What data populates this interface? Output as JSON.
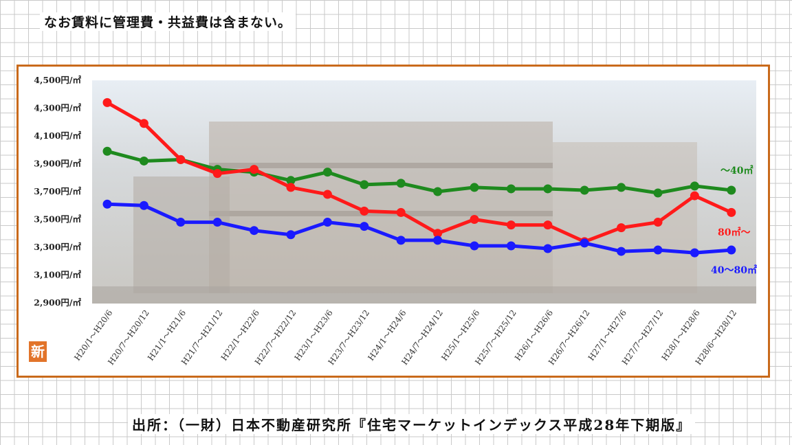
{
  "note": "なお賃料に管理費・共益費は含まない。",
  "source": "出所：（一財）日本不動産研究所『住宅マーケットインデックス平成28年下期版』",
  "badge": "新",
  "chart_data": {
    "type": "line",
    "title": "",
    "xlabel": "",
    "ylabel": "",
    "ylim": [
      2900,
      4500
    ],
    "yticks": [
      2900,
      3100,
      3300,
      3500,
      3700,
      3900,
      4100,
      4300,
      4500
    ],
    "ytick_labels": [
      "2,900円/㎡",
      "3,100円/㎡",
      "3,300円/㎡",
      "3,500円/㎡",
      "3,700円/㎡",
      "3,900円/㎡",
      "4,100円/㎡",
      "4,300円/㎡",
      "4,500円/㎡"
    ],
    "grid": false,
    "legend": "inline-right",
    "categories": [
      "H20/1～H20/6",
      "H20/7～H20/12",
      "H21/1～H21/6",
      "H21/7～H21/12",
      "H22/1～H22/6",
      "H22/7～H22/12",
      "H23/1～H23/6",
      "H23/7～H23/12",
      "H24/1～H24/6",
      "H24/7～H24/12",
      "H25/1～H25/6",
      "H25/7～H25/12",
      "H26/1～H26/6",
      "H26/7～H26/12",
      "H27/1～H27/6",
      "H27/7～H27/12",
      "H28/1～H28/6",
      "H28/6～H28/12"
    ],
    "series": [
      {
        "name": "～40㎡",
        "color": "#1e8a1e",
        "values": [
          3990,
          3920,
          3930,
          3860,
          3840,
          3780,
          3840,
          3750,
          3760,
          3700,
          3730,
          3720,
          3720,
          3710,
          3730,
          3690,
          3740,
          3710
        ]
      },
      {
        "name": "80㎡～",
        "color": "#ff1a1a",
        "values": [
          4340,
          4190,
          3930,
          3830,
          3860,
          3730,
          3680,
          3560,
          3550,
          3400,
          3500,
          3460,
          3460,
          3340,
          3440,
          3480,
          3670,
          3550
        ]
      },
      {
        "name": "40～80㎡",
        "color": "#1a1aff",
        "values": [
          3610,
          3600,
          3480,
          3480,
          3420,
          3390,
          3480,
          3450,
          3350,
          3350,
          3310,
          3310,
          3290,
          3330,
          3270,
          3280,
          3260,
          3280
        ]
      }
    ]
  }
}
